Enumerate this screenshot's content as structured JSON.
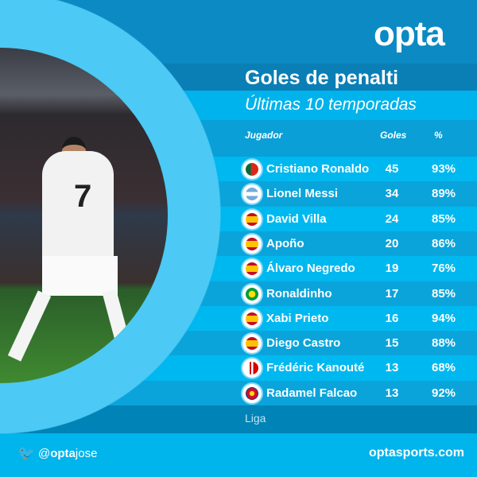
{
  "brand": {
    "logo": "opta",
    "accent": "#00b4ec",
    "dark": "#0a7fb6"
  },
  "title": "Goles de penalti",
  "subtitle": "Últimas 10 temporadas",
  "columns": {
    "player": "Jugador",
    "goals": "Goles",
    "pct": "%"
  },
  "rows": [
    {
      "name": "Cristiano Ronaldo",
      "goals": "45",
      "pct": "93%",
      "badge": "portugal-flag"
    },
    {
      "name": "Lionel Messi",
      "goals": "34",
      "pct": "89%",
      "badge": "argentina-crest"
    },
    {
      "name": "David Villa",
      "goals": "24",
      "pct": "85%",
      "badge": "spain-flag"
    },
    {
      "name": "Apoño",
      "goals": "20",
      "pct": "86%",
      "badge": "spain-flag"
    },
    {
      "name": "Álvaro Negredo",
      "goals": "19",
      "pct": "76%",
      "badge": "spain-flag"
    },
    {
      "name": "Ronaldinho",
      "goals": "17",
      "pct": "85%",
      "badge": "brazil-crest"
    },
    {
      "name": "Xabi Prieto",
      "goals": "16",
      "pct": "94%",
      "badge": "spain-flag"
    },
    {
      "name": "Diego Castro",
      "goals": "15",
      "pct": "88%",
      "badge": "spain-flag"
    },
    {
      "name": "Frédéric Kanouté",
      "goals": "13",
      "pct": "68%",
      "badge": "sevilla-crest"
    },
    {
      "name": "Radamel Falcao",
      "goals": "13",
      "pct": "92%",
      "badge": "colombia-crest"
    }
  ],
  "footer_note": "Liga",
  "social": {
    "at": "@",
    "handle_bold": "opta",
    "handle_rest": "jose",
    "icon": "twitter-bird-icon"
  },
  "site": "optasports.com",
  "photo": {
    "shirt_number": "7"
  }
}
